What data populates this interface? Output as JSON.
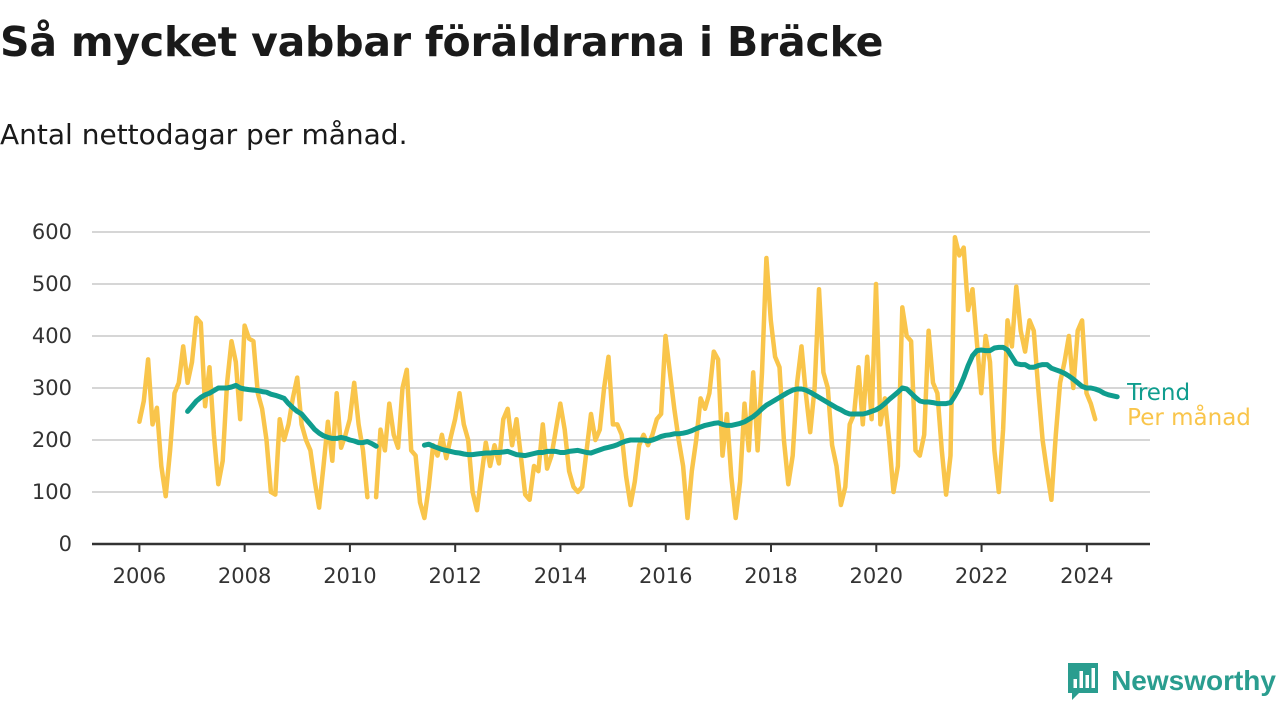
{
  "header": {
    "title": "Så mycket vabbar föräldrarna i Bräcke",
    "subtitle": "Antal nettodagar per månad."
  },
  "brand": {
    "name": "Newsworthy",
    "color": "#2a9d8f",
    "icon": "newsworthy-logo-icon"
  },
  "colors": {
    "monthly": "#f9c54b",
    "trend": "#109d8e",
    "grid": "#d6d6d6",
    "axis": "#333333"
  },
  "chart_data": {
    "type": "line",
    "title": "Så mycket vabbar föräldrarna i Bräcke",
    "subtitle": "Antal nettodagar per månad.",
    "xlabel": "",
    "ylabel": "",
    "xlim": [
      2005.1,
      2025.2
    ],
    "ylim": [
      0,
      600
    ],
    "x_ticks": [
      2006,
      2008,
      2010,
      2012,
      2014,
      2016,
      2018,
      2020,
      2022,
      2024
    ],
    "y_ticks": [
      0,
      100,
      200,
      300,
      400,
      500,
      600
    ],
    "grid": true,
    "legend": "inline labels at line ends (right)",
    "series": [
      {
        "name": "Per månad",
        "start": 2006.0,
        "step": 0.0833,
        "values": [
          235,
          275,
          355,
          230,
          262,
          150,
          92,
          180,
          290,
          310,
          380,
          310,
          350,
          435,
          425,
          265,
          340,
          210,
          115,
          160,
          310,
          390,
          350,
          240,
          420,
          395,
          390,
          290,
          260,
          200,
          100,
          95,
          240,
          200,
          230,
          280,
          320,
          230,
          200,
          180,
          120,
          70,
          150,
          235,
          160,
          290,
          185,
          210,
          240,
          310,
          230,
          180,
          90,
          null,
          90,
          220,
          180,
          270,
          210,
          185,
          300,
          335,
          180,
          170,
          80,
          50,
          110,
          190,
          170,
          210,
          165,
          205,
          240,
          290,
          230,
          200,
          100,
          65,
          130,
          195,
          150,
          190,
          155,
          240,
          260,
          190,
          240,
          170,
          95,
          85,
          150,
          140,
          230,
          145,
          170,
          220,
          270,
          220,
          140,
          110,
          100,
          110,
          180,
          250,
          200,
          220,
          300,
          360,
          230,
          230,
          210,
          130,
          75,
          120,
          190,
          210,
          190,
          210,
          240,
          250,
          400,
          330,
          260,
          200,
          150,
          50,
          140,
          200,
          280,
          260,
          290,
          370,
          355,
          170,
          250,
          130,
          50,
          120,
          270,
          180,
          330,
          180,
          330,
          550,
          430,
          360,
          340,
          200,
          115,
          170,
          310,
          380,
          290,
          215,
          300,
          490,
          330,
          300,
          190,
          150,
          75,
          110,
          230,
          250,
          340,
          230,
          360,
          240,
          500,
          230,
          280,
          200,
          100,
          150,
          455,
          400,
          390,
          180,
          170,
          210,
          410,
          310,
          290,
          180,
          95,
          170,
          590,
          555,
          570,
          450,
          490,
          390,
          290,
          400,
          350,
          180,
          100,
          220,
          430,
          380,
          495,
          410,
          370,
          430,
          410,
          300,
          200,
          140,
          85,
          210,
          310,
          350,
          400,
          300,
          410,
          430,
          290,
          270,
          240
        ]
      },
      {
        "name": "Trend",
        "start": 2006.9167,
        "step": 0.0833,
        "values": [
          255,
          265,
          275,
          282,
          287,
          290,
          295,
          300,
          300,
          300,
          302,
          305,
          300,
          298,
          297,
          296,
          295,
          293,
          292,
          288,
          286,
          283,
          280,
          270,
          262,
          255,
          250,
          240,
          230,
          220,
          213,
          208,
          205,
          203,
          203,
          205,
          203,
          200,
          198,
          195,
          195,
          197,
          193,
          188,
          null,
          null,
          null,
          null,
          null,
          null,
          null,
          null,
          null,
          null,
          190,
          192,
          188,
          185,
          182,
          180,
          178,
          176,
          175,
          173,
          172,
          172,
          173,
          174,
          175,
          175,
          176,
          176,
          177,
          178,
          175,
          172,
          171,
          170,
          172,
          174,
          176,
          176,
          178,
          178,
          178,
          176,
          176,
          178,
          179,
          180,
          178,
          176,
          175,
          178,
          181,
          184,
          186,
          188,
          191,
          195,
          198,
          200,
          200,
          200,
          200,
          198,
          200,
          203,
          207,
          209,
          210,
          212,
          212,
          213,
          215,
          218,
          222,
          225,
          228,
          230,
          232,
          233,
          230,
          228,
          228,
          230,
          232,
          235,
          240,
          245,
          252,
          260,
          267,
          272,
          277,
          282,
          287,
          292,
          296,
          298,
          298,
          296,
          292,
          287,
          282,
          277,
          272,
          267,
          262,
          258,
          253,
          250,
          250,
          250,
          250,
          252,
          255,
          258,
          263,
          270,
          278,
          285,
          292,
          300,
          298,
          290,
          282,
          275,
          273,
          273,
          272,
          270,
          270,
          270,
          272,
          285,
          300,
          320,
          343,
          362,
          372,
          373,
          372,
          372,
          377,
          378,
          378,
          373,
          360,
          347,
          345,
          345,
          340,
          340,
          343,
          345,
          345,
          338,
          335,
          332,
          328,
          323,
          317,
          310,
          303,
          300,
          300,
          298,
          295,
          290,
          287,
          285,
          283
        ]
      }
    ]
  }
}
